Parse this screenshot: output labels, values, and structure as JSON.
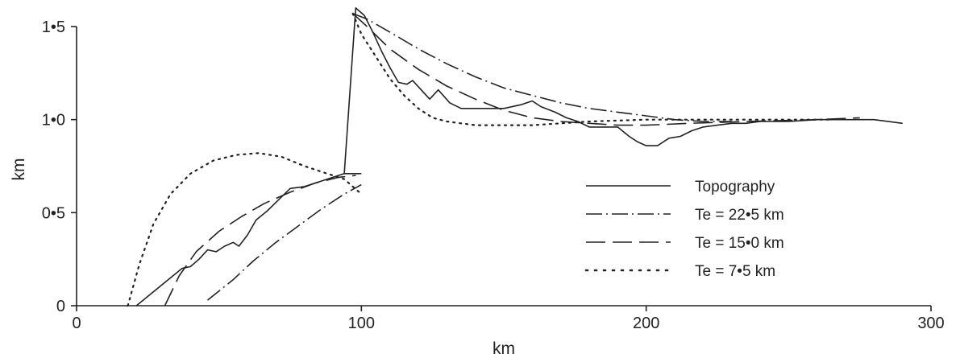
{
  "chart_data": {
    "type": "line",
    "title": "",
    "xlabel": "km",
    "ylabel": "km",
    "xlim": [
      0,
      300
    ],
    "ylim": [
      0,
      1.5
    ],
    "xticks": [
      {
        "value": 0,
        "label": "0"
      },
      {
        "value": 100,
        "label": "100"
      },
      {
        "value": 200,
        "label": "200"
      },
      {
        "value": 300,
        "label": "300"
      }
    ],
    "yticks": [
      {
        "value": 0,
        "label": "0"
      },
      {
        "value": 0.5,
        "label": "0•5"
      },
      {
        "value": 1.0,
        "label": "1•0"
      },
      {
        "value": 1.5,
        "label": "1•5"
      }
    ],
    "grid": false,
    "legend_position": "right",
    "series": [
      {
        "name": "Topography",
        "style": "solid",
        "segments": [
          [
            [
              21,
              0
            ],
            [
              37,
              0.2
            ],
            [
              40,
              0.21
            ],
            [
              43,
              0.25
            ],
            [
              46,
              0.3
            ],
            [
              49,
              0.29
            ],
            [
              52,
              0.32
            ],
            [
              55,
              0.34
            ],
            [
              57,
              0.32
            ],
            [
              60,
              0.38
            ],
            [
              63,
              0.46
            ],
            [
              67,
              0.51
            ],
            [
              71,
              0.57
            ],
            [
              75,
              0.63
            ],
            [
              80,
              0.64
            ],
            [
              86,
              0.67
            ],
            [
              90,
              0.69
            ],
            [
              94,
              0.71
            ],
            [
              100,
              0.71
            ]
          ],
          [
            [
              94,
              0.71
            ],
            [
              98,
              1.6
            ],
            [
              101,
              1.56
            ],
            [
              104,
              1.47
            ],
            [
              107,
              1.37
            ],
            [
              110,
              1.28
            ],
            [
              113,
              1.2
            ],
            [
              116,
              1.19
            ],
            [
              118,
              1.21
            ],
            [
              121,
              1.16
            ],
            [
              124,
              1.11
            ],
            [
              127,
              1.16
            ],
            [
              131,
              1.09
            ],
            [
              135,
              1.06
            ],
            [
              140,
              1.06
            ],
            [
              145,
              1.06
            ],
            [
              150,
              1.06
            ],
            [
              156,
              1.08
            ],
            [
              160,
              1.1
            ],
            [
              163,
              1.07
            ],
            [
              168,
              1.04
            ],
            [
              172,
              1.01
            ],
            [
              176,
              0.99
            ],
            [
              180,
              0.96
            ],
            [
              185,
              0.96
            ],
            [
              190,
              0.96
            ],
            [
              194,
              0.91
            ],
            [
              197,
              0.88
            ],
            [
              200,
              0.86
            ],
            [
              204,
              0.86
            ],
            [
              208,
              0.9
            ],
            [
              212,
              0.91
            ],
            [
              216,
              0.94
            ],
            [
              220,
              0.96
            ],
            [
              225,
              0.97
            ],
            [
              230,
              0.98
            ],
            [
              235,
              0.98
            ],
            [
              240,
              0.99
            ],
            [
              250,
              0.99
            ],
            [
              260,
              1.0
            ],
            [
              270,
              1.0
            ],
            [
              280,
              1.0
            ],
            [
              290,
              0.98
            ]
          ]
        ]
      },
      {
        "name": "Te = 22•5 km",
        "style": "dashdot",
        "segments": [
          [
            [
              46,
              0.03
            ],
            [
              55,
              0.14
            ],
            [
              62,
              0.24
            ],
            [
              70,
              0.34
            ],
            [
              78,
              0.43
            ],
            [
              86,
              0.52
            ],
            [
              94,
              0.6
            ],
            [
              100,
              0.65
            ]
          ],
          [
            [
              97,
              1.57
            ],
            [
              102,
              1.54
            ],
            [
              110,
              1.47
            ],
            [
              120,
              1.38
            ],
            [
              130,
              1.3
            ],
            [
              140,
              1.23
            ],
            [
              150,
              1.17
            ],
            [
              160,
              1.13
            ],
            [
              170,
              1.09
            ],
            [
              180,
              1.06
            ],
            [
              190,
              1.04
            ],
            [
              200,
              1.02
            ],
            [
              210,
              1.0
            ],
            [
              220,
              0.99
            ],
            [
              230,
              0.99
            ]
          ]
        ]
      },
      {
        "name": "Te = 15•0 km",
        "style": "dashed",
        "segments": [
          [
            [
              31,
              0
            ],
            [
              36,
              0.16
            ],
            [
              42,
              0.29
            ],
            [
              50,
              0.4
            ],
            [
              58,
              0.48
            ],
            [
              66,
              0.55
            ],
            [
              75,
              0.61
            ],
            [
              84,
              0.66
            ],
            [
              92,
              0.69
            ],
            [
              98,
              0.7
            ]
          ],
          [
            [
              97,
              1.57
            ],
            [
              102,
              1.5
            ],
            [
              110,
              1.38
            ],
            [
              120,
              1.27
            ],
            [
              130,
              1.18
            ],
            [
              140,
              1.11
            ],
            [
              150,
              1.05
            ],
            [
              160,
              1.01
            ],
            [
              170,
              0.99
            ],
            [
              180,
              0.98
            ],
            [
              190,
              0.97
            ],
            [
              200,
              0.97
            ],
            [
              215,
              0.98
            ],
            [
              235,
              0.99
            ],
            [
              260,
              1.0
            ],
            [
              275,
              1.01
            ]
          ]
        ]
      },
      {
        "name": "Te = 7•5 km",
        "style": "dotted",
        "segments": [
          [
            [
              18,
              0
            ],
            [
              22,
              0.22
            ],
            [
              27,
              0.44
            ],
            [
              33,
              0.6
            ],
            [
              40,
              0.71
            ],
            [
              48,
              0.78
            ],
            [
              56,
              0.81
            ],
            [
              64,
              0.82
            ],
            [
              72,
              0.8
            ],
            [
              80,
              0.75
            ],
            [
              88,
              0.71
            ],
            [
              94,
              0.68
            ],
            [
              100,
              0.6
            ]
          ],
          [
            [
              97,
              1.57
            ],
            [
              100,
              1.46
            ],
            [
              105,
              1.34
            ],
            [
              110,
              1.22
            ],
            [
              115,
              1.13
            ],
            [
              120,
              1.06
            ],
            [
              125,
              1.01
            ],
            [
              130,
              0.99
            ],
            [
              140,
              0.97
            ],
            [
              150,
              0.97
            ],
            [
              160,
              0.97
            ],
            [
              170,
              0.98
            ],
            [
              180,
              0.99
            ],
            [
              200,
              1.0
            ],
            [
              220,
              1.0
            ],
            [
              250,
              1.0
            ],
            [
              265,
              1.0
            ]
          ]
        ]
      }
    ]
  }
}
